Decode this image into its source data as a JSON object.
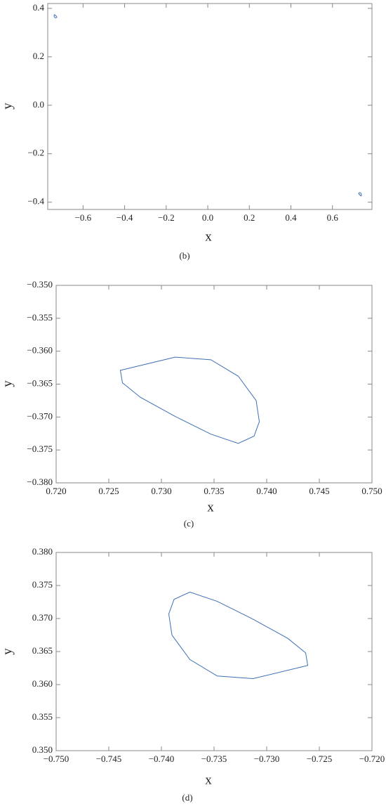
{
  "chart_data": [
    {
      "type": "line",
      "caption": "(b)",
      "x_label": "x",
      "y_label": "y",
      "xlim": [
        -0.77,
        0.79
      ],
      "ylim": [
        -0.43,
        0.42
      ],
      "xticks": [
        {
          "value": -0.6,
          "label": "−0.6"
        },
        {
          "value": -0.4,
          "label": "−0.4"
        },
        {
          "value": -0.2,
          "label": "−0.2"
        },
        {
          "value": 0,
          "label": "0.0"
        },
        0.2,
        0.4,
        0.6
      ],
      "yticks": [
        {
          "value": -0.4,
          "label": "−0.4"
        },
        {
          "value": -0.2,
          "label": "−0.2"
        },
        {
          "value": 0,
          "label": "0.0"
        },
        0.2,
        0.4
      ],
      "series": [
        {
          "color": "#3d6fb5",
          "x": [
            0.7261,
            0.7313,
            0.7347,
            0.7373,
            0.739,
            0.7393,
            0.7388,
            0.7373,
            0.7347,
            0.7313,
            0.728,
            0.7263
          ],
          "y": [
            -0.3629,
            -0.3609,
            -0.3613,
            -0.3638,
            -0.3675,
            -0.3707,
            -0.3729,
            -0.374,
            -0.3726,
            -0.3699,
            -0.367,
            -0.3648
          ]
        },
        {
          "color": "#3d6fb5",
          "x": [
            -0.7261,
            -0.7313,
            -0.7347,
            -0.7373,
            -0.739,
            -0.7393,
            -0.7388,
            -0.7373,
            -0.7347,
            -0.7313,
            -0.728,
            -0.7263
          ],
          "y": [
            0.3629,
            0.3609,
            0.3613,
            0.3638,
            0.3675,
            0.3707,
            0.3729,
            0.374,
            0.3726,
            0.3699,
            0.367,
            0.3648
          ]
        }
      ]
    },
    {
      "type": "line",
      "caption": "(c)",
      "x_label": "x",
      "y_label": "y",
      "xlim": [
        0.72,
        0.75
      ],
      "ylim": [
        -0.38,
        -0.35
      ],
      "xticks": [
        {
          "value": 0.72,
          "label": "0.720"
        },
        0.725,
        {
          "value": 0.73,
          "label": "0.730"
        },
        0.735,
        {
          "value": 0.74,
          "label": "0.740"
        },
        0.745,
        {
          "value": 0.75,
          "label": "0.750"
        }
      ],
      "yticks": [
        {
          "value": -0.38,
          "label": "−0.380"
        },
        {
          "value": -0.375,
          "label": "−0.375"
        },
        {
          "value": -0.37,
          "label": "−0.370"
        },
        {
          "value": -0.365,
          "label": "−0.365"
        },
        {
          "value": -0.36,
          "label": "−0.360"
        },
        {
          "value": -0.355,
          "label": "−0.355"
        },
        {
          "value": -0.35,
          "label": "−0.350"
        }
      ],
      "series": [
        {
          "color": "#3d6fb5",
          "x": [
            0.7261,
            0.7313,
            0.7347,
            0.7373,
            0.739,
            0.7393,
            0.7388,
            0.7373,
            0.7347,
            0.7313,
            0.728,
            0.7263
          ],
          "y": [
            -0.3629,
            -0.3609,
            -0.3613,
            -0.3638,
            -0.3675,
            -0.3707,
            -0.3729,
            -0.374,
            -0.3726,
            -0.3699,
            -0.367,
            -0.3648
          ]
        }
      ]
    },
    {
      "type": "line",
      "caption": "(d)",
      "x_label": "x",
      "y_label": "y",
      "xlim": [
        -0.75,
        -0.72
      ],
      "ylim": [
        0.35,
        0.38
      ],
      "xticks": [
        {
          "value": -0.75,
          "label": "−0.750"
        },
        {
          "value": -0.745,
          "label": "−0.745"
        },
        {
          "value": -0.74,
          "label": "−0.740"
        },
        {
          "value": -0.735,
          "label": "−0.735"
        },
        {
          "value": -0.73,
          "label": "−0.730"
        },
        {
          "value": -0.725,
          "label": "−0.725"
        },
        {
          "value": -0.72,
          "label": "−0.720"
        }
      ],
      "yticks": [
        {
          "value": 0.35,
          "label": "0.350"
        },
        0.355,
        {
          "value": 0.36,
          "label": "0.360"
        },
        0.365,
        {
          "value": 0.37,
          "label": "0.370"
        },
        0.375,
        {
          "value": 0.38,
          "label": "0.380"
        }
      ],
      "series": [
        {
          "color": "#3d6fb5",
          "x": [
            -0.7261,
            -0.7313,
            -0.7347,
            -0.7373,
            -0.739,
            -0.7393,
            -0.7388,
            -0.7373,
            -0.7347,
            -0.7313,
            -0.728,
            -0.7263
          ],
          "y": [
            0.3629,
            0.3609,
            0.3613,
            0.3638,
            0.3675,
            0.3707,
            0.3729,
            0.374,
            0.3726,
            0.3699,
            0.367,
            0.3648
          ]
        }
      ]
    }
  ]
}
